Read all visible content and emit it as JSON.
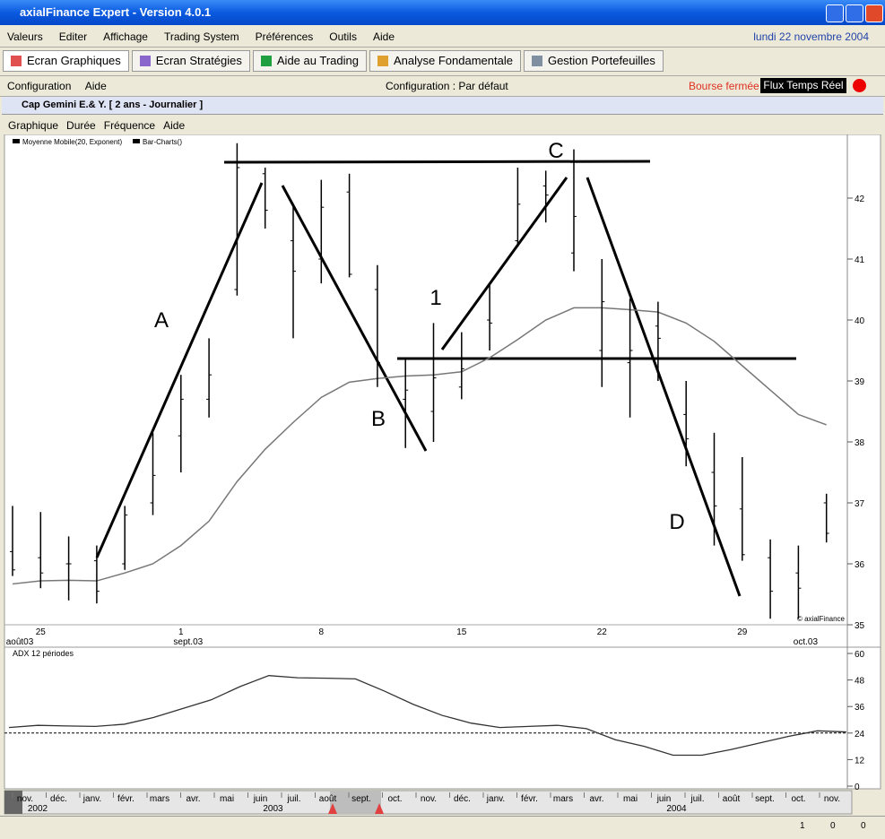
{
  "window": {
    "title": "axialFinance Expert - Version 4.0.1"
  },
  "menu": [
    "Valeurs",
    "Editer",
    "Affichage",
    "Trading System",
    "Préférences",
    "Outils",
    "Aide"
  ],
  "date": "lundi 22 novembre 2004",
  "tabs": [
    "Ecran Graphiques",
    "Ecran Stratégies",
    "Aide au Trading",
    "Analyse Fondamentale",
    "Gestion Portefeuilles"
  ],
  "toolbar": {
    "items": [
      "Configuration",
      "Aide"
    ],
    "config": "Configuration : Par défaut",
    "status": "Bourse fermée",
    "feed": "Flux Temps Réel"
  },
  "chart_window": {
    "title": "Cap Gemini E.& Y.  [ 2 ans - Journalier ]",
    "menu": [
      "Graphique",
      "Durée",
      "Fréquence",
      "Aide"
    ]
  },
  "chart_data": [
    {
      "type": "ohlc",
      "categories": [
        null,
        "25",
        null,
        null,
        null,
        null,
        "1",
        null,
        null,
        null,
        null,
        "8",
        null,
        null,
        null,
        null,
        "15",
        null,
        null,
        null,
        null,
        "22",
        null,
        null,
        null,
        null,
        "29",
        null,
        null,
        null
      ],
      "month_labels": [
        "août03",
        null,
        null,
        null,
        null,
        null,
        "sept.03",
        null,
        null,
        null,
        null,
        null,
        null,
        null,
        null,
        null,
        null,
        null,
        null,
        null,
        null,
        null,
        null,
        null,
        null,
        null,
        null,
        null,
        "oct.03",
        null
      ],
      "series": [
        {
          "name": "Moyenne Mobile(20, Exponent)",
          "color": "#777777",
          "values": [
            35.67,
            35.72,
            35.73,
            35.72,
            35.85,
            36.0,
            36.3,
            36.7,
            37.35,
            37.88,
            38.32,
            38.73,
            38.98,
            39.04,
            39.08,
            39.1,
            39.15,
            39.38,
            39.68,
            40.0,
            40.2,
            40.2,
            40.17,
            40.13,
            39.95,
            39.65,
            39.25,
            38.85,
            38.45,
            38.28
          ]
        },
        {
          "name": "Bar-Charts()",
          "color": "#000000",
          "open": [
            36.2,
            36.1,
            36.0,
            36.05,
            36.0,
            37.0,
            38.1,
            38.7,
            40.5,
            42.4,
            41.3,
            41.0,
            42.1,
            40.5,
            38.7,
            38.5,
            38.9,
            40.0,
            41.3,
            42.2,
            41.1,
            39.5,
            39.3,
            39.9,
            38.45,
            37.5,
            36.9,
            36.1,
            35.85,
            37.0
          ],
          "high": [
            36.95,
            36.85,
            36.45,
            36.3,
            36.95,
            38.15,
            39.1,
            39.7,
            42.9,
            42.5,
            41.9,
            42.3,
            42.4,
            40.9,
            39.35,
            39.95,
            39.8,
            40.6,
            42.5,
            42.45,
            42.8,
            41.0,
            40.35,
            40.3,
            39.0,
            38.15,
            37.75,
            36.4,
            36.3,
            37.15
          ],
          "low": [
            35.8,
            35.6,
            35.4,
            35.35,
            35.9,
            36.8,
            37.5,
            38.4,
            40.4,
            41.5,
            39.7,
            40.6,
            40.7,
            38.9,
            37.9,
            38.0,
            38.7,
            39.5,
            41.2,
            41.6,
            40.8,
            38.9,
            38.4,
            39.0,
            37.6,
            36.3,
            36.05,
            35.1,
            35.1,
            36.35
          ],
          "close": [
            35.9,
            35.85,
            36.0,
            35.55,
            36.8,
            37.45,
            38.7,
            39.1,
            42.5,
            41.8,
            40.8,
            41.85,
            40.75,
            39.3,
            38.85,
            39.05,
            39.2,
            39.95,
            41.9,
            42.05,
            41.7,
            40.3,
            39.5,
            39.7,
            38.05,
            36.95,
            36.15,
            35.55,
            35.6,
            36.5
          ]
        }
      ],
      "ylim": [
        35,
        42.8
      ],
      "yticks": [
        35,
        36,
        37,
        38,
        39,
        40,
        41,
        42
      ],
      "annotations": [
        "A",
        "B",
        "C",
        "1",
        "D"
      ],
      "credit": "© axialFinance"
    },
    {
      "type": "line",
      "title": "ADX 12 périodes",
      "series": [
        {
          "name": "ADX",
          "color": "#333333",
          "values": [
            26.5,
            27.5,
            27.2,
            27,
            28,
            31,
            35,
            39,
            45,
            50,
            49,
            48.8,
            48.5,
            43,
            37,
            32,
            28.5,
            26.5,
            27,
            27.5,
            26,
            21,
            18,
            14,
            14,
            16.5,
            19.5,
            22.5,
            25,
            24.5
          ]
        }
      ],
      "ylim": [
        0,
        60
      ],
      "yticks": [
        0,
        12,
        24,
        36,
        48,
        60
      ],
      "reference_line": 24
    }
  ],
  "timeline": {
    "months": [
      "nov.",
      "déc.",
      "janv.",
      "févr.",
      "mars",
      "avr.",
      "mai",
      "juin",
      "juil.",
      "août",
      "sept.",
      "oct.",
      "nov.",
      "déc.",
      "janv.",
      "févr.",
      "mars",
      "avr.",
      "mai",
      "juin",
      "juil.",
      "août",
      "sept.",
      "oct.",
      "nov."
    ],
    "years": [
      "2002",
      "2003",
      "2004"
    ]
  },
  "status_bar": [
    "1",
    "0",
    "0"
  ]
}
